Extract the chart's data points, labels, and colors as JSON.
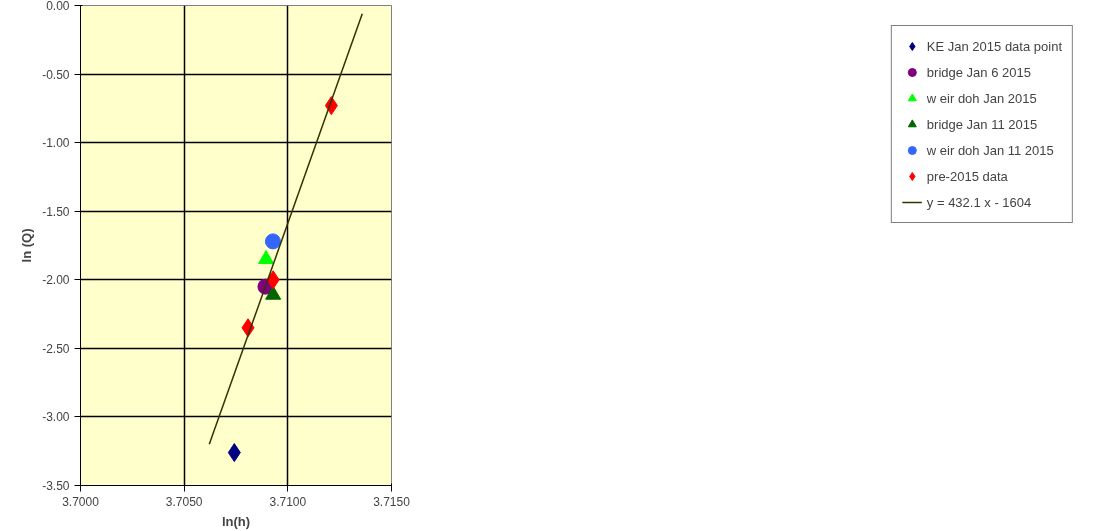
{
  "chart_data": {
    "type": "scatter",
    "xlabel": "ln(h)",
    "ylabel": "ln (Q)",
    "xlim": [
      3.7,
      3.715
    ],
    "xticks": [
      {
        "value": 3.7,
        "label": "3.7000"
      },
      {
        "value": 3.705,
        "label": "3.7050"
      },
      {
        "value": 3.71,
        "label": "3.7100"
      },
      {
        "value": 3.715,
        "label": "3.7150"
      }
    ],
    "ylim": [
      -3.5,
      0
    ],
    "yticks": [
      {
        "value": -3.5,
        "label": "-3.50"
      },
      {
        "value": -3,
        "label": "-3.00"
      },
      {
        "value": -2.5,
        "label": "-2.50"
      },
      {
        "value": -2,
        "label": "-2.00"
      },
      {
        "value": -1.5,
        "label": "-1.50"
      },
      {
        "value": -1,
        "label": "-1.00"
      },
      {
        "value": -0.5,
        "label": "-0.50"
      },
      {
        "value": 0,
        "label": "0.00"
      }
    ],
    "grid": true,
    "legend": "right",
    "series": [
      {
        "name": "KE Jan 2015 data point",
        "color": "#000080",
        "marker": "diamond",
        "x": [
          3.70742
        ],
        "values": [
          -3.26
        ]
      },
      {
        "name": "bridge Jan 6 2015",
        "color": "#800080",
        "marker": "circle",
        "x": [
          3.70892
        ],
        "values": [
          -2.05
        ]
      },
      {
        "name": "w eir doh Jan 2015",
        "color": "#00ff00",
        "marker": "triangle",
        "x": [
          3.70895
        ],
        "values": [
          -1.85
        ]
      },
      {
        "name": "bridge Jan 11 2015",
        "color": "#006400",
        "marker": "triangle",
        "x": [
          3.70929
        ],
        "values": [
          -2.11
        ]
      },
      {
        "name": "w eir doh Jan 11 2015",
        "color": "#3366ff",
        "marker": "circle",
        "x": [
          3.70928
        ],
        "values": [
          -1.72
        ]
      },
      {
        "name": "pre-2015 data",
        "color": "#ff0000",
        "marker": "diamond",
        "x": [
          3.70808,
          3.70929,
          3.7121
        ],
        "values": [
          -2.35,
          -2.0,
          -0.73
        ]
      },
      {
        "name": "y = 432.1 x - 1604",
        "color": "#333300",
        "type": "line",
        "marker": "none",
        "x": [
          3.70621,
          3.71359
        ],
        "values": [
          -3.2,
          -0.06
        ]
      }
    ]
  }
}
